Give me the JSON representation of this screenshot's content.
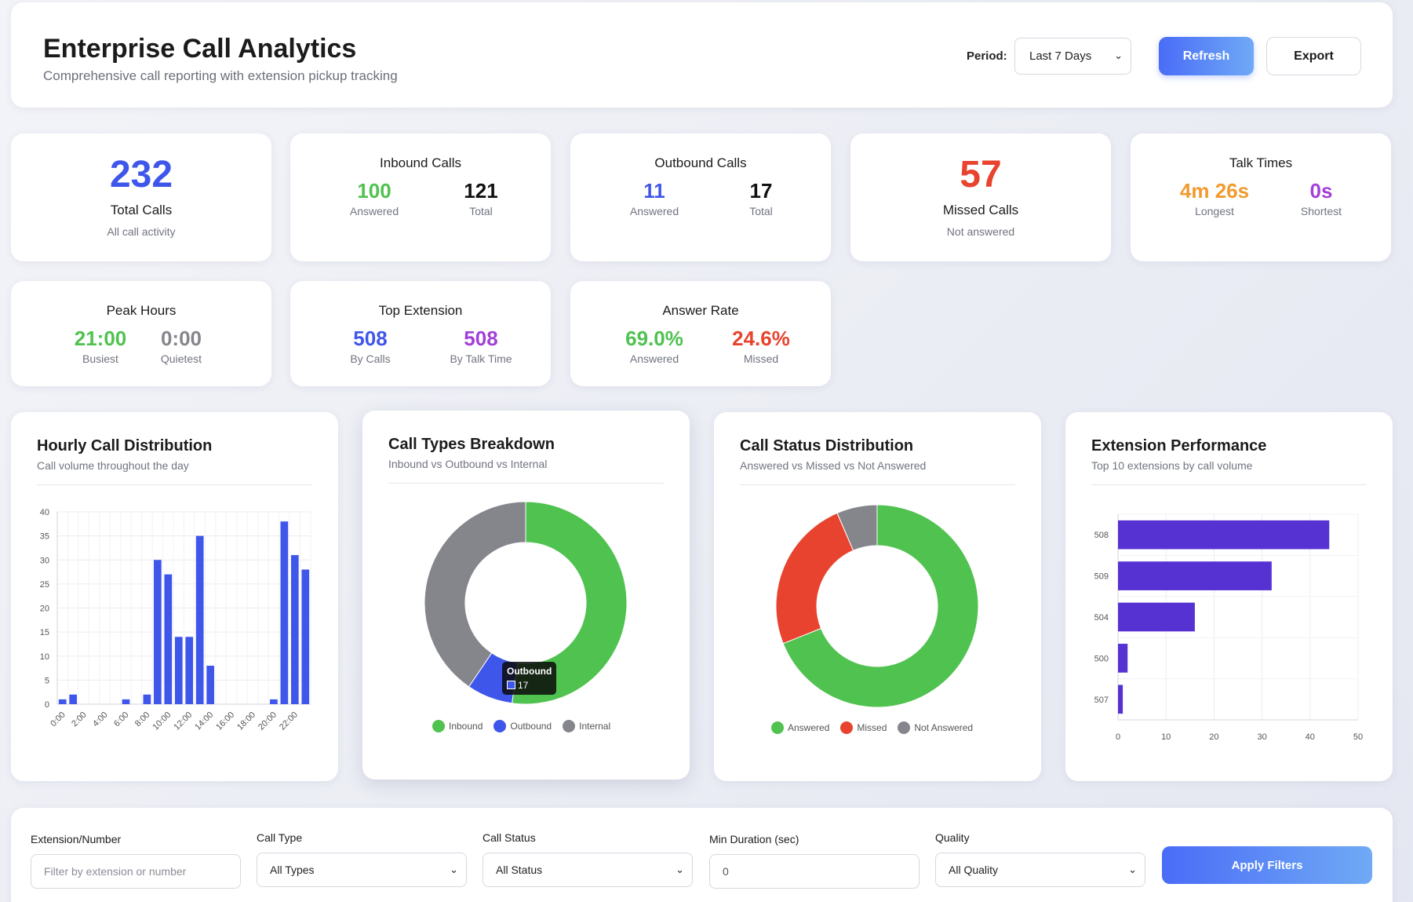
{
  "header": {
    "title": "Enterprise Call Analytics",
    "subtitle": "Comprehensive call reporting with extension pickup tracking",
    "period_label": "Period:",
    "period_value": "Last 7 Days",
    "refresh_label": "Refresh",
    "export_label": "Export"
  },
  "stats": {
    "total": {
      "value": "232",
      "label": "Total Calls",
      "sub": "All call activity"
    },
    "inbound": {
      "title": "Inbound Calls",
      "a_value": "100",
      "a_label": "Answered",
      "b_value": "121",
      "b_label": "Total"
    },
    "outbound": {
      "title": "Outbound Calls",
      "a_value": "11",
      "a_label": "Answered",
      "b_value": "17",
      "b_label": "Total"
    },
    "missed": {
      "value": "57",
      "label": "Missed Calls",
      "sub": "Not answered"
    },
    "talk": {
      "title": "Talk Times",
      "a_value": "4m 26s",
      "a_label": "Longest",
      "b_value": "0s",
      "b_label": "Shortest"
    },
    "peak": {
      "title": "Peak Hours",
      "a_value": "21:00",
      "a_label": "Busiest",
      "b_value": "0:00",
      "b_label": "Quietest"
    },
    "top_ext": {
      "title": "Top Extension",
      "a_value": "508",
      "a_label": "By Calls",
      "b_value": "508",
      "b_label": "By Talk Time"
    },
    "answer_rate": {
      "title": "Answer Rate",
      "a_value": "69.0%",
      "a_label": "Answered",
      "b_value": "24.6%",
      "b_label": "Missed"
    }
  },
  "charts": {
    "hourly": {
      "title": "Hourly Call Distribution",
      "subtitle": "Call volume throughout the day"
    },
    "types": {
      "title": "Call Types Breakdown",
      "subtitle": "Inbound vs Outbound vs Internal",
      "tooltip_title": "Outbound",
      "tooltip_value": "17"
    },
    "status": {
      "title": "Call Status Distribution",
      "subtitle": "Answered vs Missed vs Not Answered"
    },
    "ext": {
      "title": "Extension Performance",
      "subtitle": "Top 10 extensions by call volume"
    }
  },
  "chart_data": [
    {
      "type": "bar",
      "x_tick_labels": [
        "0:00",
        "2:00",
        "4:00",
        "6:00",
        "8:00",
        "10:00",
        "12:00",
        "14:00",
        "16:00",
        "18:00",
        "20:00",
        "22:00"
      ],
      "categories": [
        "0:00",
        "1:00",
        "2:00",
        "3:00",
        "4:00",
        "5:00",
        "6:00",
        "7:00",
        "8:00",
        "9:00",
        "10:00",
        "11:00",
        "12:00",
        "13:00",
        "14:00",
        "15:00",
        "16:00",
        "17:00",
        "18:00",
        "19:00",
        "20:00",
        "21:00",
        "22:00",
        "23:00"
      ],
      "values": [
        1,
        2,
        0,
        0,
        0,
        0,
        1,
        0,
        2,
        30,
        27,
        14,
        14,
        35,
        8,
        0,
        0,
        0,
        0,
        0,
        1,
        38,
        31,
        28
      ],
      "ylim": [
        0,
        40
      ],
      "yticks": [
        0,
        5,
        10,
        15,
        20,
        25,
        30,
        35,
        40
      ],
      "color": "#3f56ea"
    },
    {
      "type": "pie",
      "donut": true,
      "labels": [
        "Inbound",
        "Outbound",
        "Internal"
      ],
      "values": [
        121,
        17,
        94
      ],
      "colors": [
        "#4fc24f",
        "#3f56ea",
        "#85868c"
      ]
    },
    {
      "type": "pie",
      "donut": true,
      "labels": [
        "Answered",
        "Missed",
        "Not Answered"
      ],
      "values": [
        160,
        57,
        15
      ],
      "colors": [
        "#4fc24f",
        "#e8432f",
        "#85868c"
      ]
    },
    {
      "type": "bar",
      "orientation": "horizontal",
      "categories": [
        "508",
        "509",
        "504",
        "500",
        "507"
      ],
      "values": [
        44,
        32,
        16,
        2,
        1
      ],
      "xlim": [
        0,
        50
      ],
      "xticks": [
        0,
        10,
        20,
        30,
        40,
        50
      ],
      "color": "#5632d2"
    }
  ],
  "filters": {
    "ext_label": "Extension/Number",
    "ext_placeholder": "Filter by extension or number",
    "type_label": "Call Type",
    "type_value": "All Types",
    "status_label": "Call Status",
    "status_value": "All Status",
    "dur_label": "Min Duration (sec)",
    "dur_value": "0",
    "quality_label": "Quality",
    "quality_value": "All Quality",
    "apply_label": "Apply Filters"
  },
  "colors": {
    "blue": "#3f56ea",
    "green": "#4fc24f",
    "red": "#e8432f",
    "orange": "#f29a2e",
    "purple": "#a23fd8",
    "gray": "#85868c"
  }
}
